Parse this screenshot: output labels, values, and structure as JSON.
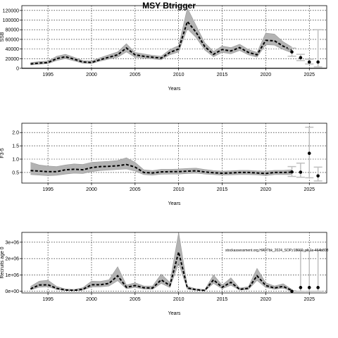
{
  "title": "MSY Btrigger",
  "colors": {
    "band": "#b3b3b3",
    "line": "#000000",
    "grid": "#000000",
    "error_bar": "#bfbfbf"
  },
  "chart_data": [
    {
      "type": "line",
      "ylabel": "SSB",
      "xlabel": "Years",
      "xlim": [
        1992,
        2027
      ],
      "ylim": [
        0,
        130000
      ],
      "xticks": [
        1995,
        2000,
        2005,
        2010,
        2015,
        2020,
        2025
      ],
      "yticks": [
        0,
        20000,
        40000,
        60000,
        80000,
        100000,
        120000
      ],
      "ytick_labels": [
        "0",
        "20000",
        "40000",
        "60000",
        "80000",
        "100000",
        "120000"
      ],
      "grid": true,
      "reference_line": 0,
      "x": [
        1993,
        1994,
        1995,
        1996,
        1997,
        1998,
        1999,
        2000,
        2001,
        2002,
        2003,
        2004,
        2005,
        2006,
        2007,
        2008,
        2009,
        2010,
        2011,
        2012,
        2013,
        2014,
        2015,
        2016,
        2017,
        2018,
        2019,
        2020,
        2021,
        2022,
        2023
      ],
      "values": [
        9000,
        11000,
        12000,
        20000,
        24000,
        19000,
        13000,
        12000,
        18000,
        23000,
        28000,
        42000,
        28000,
        25000,
        23000,
        21000,
        33000,
        40000,
        97000,
        75000,
        45000,
        29000,
        39000,
        36000,
        43000,
        33000,
        28000,
        58000,
        57000,
        46000,
        38000
      ],
      "lower": [
        7000,
        8500,
        9500,
        16000,
        20000,
        15500,
        10500,
        10000,
        15000,
        19000,
        23000,
        34000,
        23000,
        21000,
        19500,
        17500,
        28000,
        34000,
        82000,
        64000,
        38000,
        24000,
        33000,
        30000,
        37000,
        28000,
        23000,
        49000,
        48000,
        39000,
        32000
      ],
      "upper": [
        12000,
        14000,
        15000,
        25000,
        29000,
        23000,
        16000,
        15000,
        22000,
        28000,
        34000,
        51000,
        33000,
        30000,
        27000,
        25000,
        39000,
        47000,
        125000,
        89000,
        53000,
        35000,
        46000,
        43000,
        50000,
        39000,
        33000,
        73000,
        71000,
        55000,
        44000
      ],
      "projection": [
        {
          "x": 2023,
          "value": 34000,
          "lower": 25000,
          "upper": 42000
        },
        {
          "x": 2024,
          "value": 22000,
          "lower": 16000,
          "upper": 29000
        },
        {
          "x": 2025,
          "value": 13000,
          "lower": 9000,
          "upper": 19000
        },
        {
          "x": 2026,
          "value": 13000,
          "lower": 3000,
          "upper": 80000
        }
      ]
    },
    {
      "type": "line",
      "ylabel": "F3-5",
      "xlabel": "Years",
      "xlim": [
        1992,
        2027
      ],
      "ylim": [
        0.1,
        2.35
      ],
      "xticks": [
        1995,
        2000,
        2005,
        2010,
        2015,
        2020,
        2025
      ],
      "yticks": [
        0.5,
        1.0,
        1.5,
        2.0
      ],
      "ytick_labels": [
        "0.5",
        "1.0",
        "1.5",
        "2.0"
      ],
      "grid": true,
      "x": [
        1993,
        1994,
        1995,
        1996,
        1997,
        1998,
        1999,
        2000,
        2001,
        2002,
        2003,
        2004,
        2005,
        2006,
        2007,
        2008,
        2009,
        2010,
        2011,
        2012,
        2013,
        2014,
        2015,
        2016,
        2017,
        2018,
        2019,
        2020,
        2021,
        2022,
        2023
      ],
      "values": [
        0.57,
        0.55,
        0.53,
        0.53,
        0.6,
        0.62,
        0.6,
        0.68,
        0.72,
        0.73,
        0.75,
        0.8,
        0.7,
        0.5,
        0.48,
        0.52,
        0.53,
        0.53,
        0.55,
        0.56,
        0.52,
        0.49,
        0.47,
        0.48,
        0.5,
        0.5,
        0.48,
        0.46,
        0.5,
        0.5,
        0.51
      ],
      "lower": [
        0.42,
        0.4,
        0.38,
        0.39,
        0.44,
        0.47,
        0.46,
        0.53,
        0.57,
        0.59,
        0.61,
        0.63,
        0.55,
        0.42,
        0.4,
        0.43,
        0.44,
        0.44,
        0.46,
        0.47,
        0.44,
        0.42,
        0.4,
        0.41,
        0.42,
        0.42,
        0.41,
        0.38,
        0.42,
        0.42,
        0.42
      ],
      "upper": [
        0.88,
        0.78,
        0.74,
        0.72,
        0.78,
        0.82,
        0.8,
        0.88,
        0.9,
        0.92,
        0.95,
        1.05,
        0.88,
        0.6,
        0.57,
        0.62,
        0.62,
        0.63,
        0.65,
        0.66,
        0.61,
        0.57,
        0.55,
        0.56,
        0.58,
        0.58,
        0.56,
        0.55,
        0.58,
        0.58,
        0.6
      ],
      "projection": [
        {
          "x": 2023,
          "value": 0.52,
          "lower": 0.35,
          "upper": 0.72
        },
        {
          "x": 2024,
          "value": 0.51,
          "lower": 0.32,
          "upper": 0.85
        },
        {
          "x": 2025,
          "value": 1.22,
          "lower": 0.3,
          "upper": 2.2
        },
        {
          "x": 2026,
          "value": 0.37,
          "lower": 0.18,
          "upper": 0.7
        }
      ]
    },
    {
      "type": "line",
      "ylabel": "Recruits age 0",
      "xlabel": "Years",
      "xlim": [
        1992,
        2027
      ],
      "ylim": [
        -100000,
        3600000
      ],
      "xticks": [
        1995,
        2000,
        2005,
        2010,
        2015,
        2020,
        2025
      ],
      "yticks": [
        0,
        1000000,
        2000000,
        3000000
      ],
      "ytick_labels": [
        "0e+00",
        "1e+06",
        "2e+06",
        "3e+06"
      ],
      "grid": true,
      "annotation": "stockassessment.org,HAD7bk_2024_SOP,r18660_plt,1c-464b808",
      "x": [
        1993,
        1994,
        1995,
        1996,
        1997,
        1998,
        1999,
        2000,
        2001,
        2002,
        2003,
        2004,
        2005,
        2006,
        2007,
        2008,
        2009,
        2010,
        2011,
        2012,
        2013,
        2014,
        2015,
        2016,
        2017,
        2018,
        2019,
        2020,
        2021,
        2022,
        2023
      ],
      "values": [
        150000,
        380000,
        400000,
        180000,
        80000,
        60000,
        120000,
        400000,
        400000,
        480000,
        950000,
        250000,
        350000,
        220000,
        200000,
        700000,
        350000,
        2400000,
        200000,
        100000,
        50000,
        700000,
        250000,
        550000,
        120000,
        180000,
        950000,
        350000,
        200000,
        300000,
        50000
      ],
      "lower": [
        80000,
        250000,
        280000,
        110000,
        40000,
        30000,
        70000,
        260000,
        270000,
        320000,
        650000,
        160000,
        230000,
        140000,
        120000,
        480000,
        230000,
        1700000,
        130000,
        60000,
        20000,
        480000,
        160000,
        370000,
        70000,
        110000,
        660000,
        230000,
        130000,
        190000,
        20000
      ],
      "upper": [
        300000,
        620000,
        680000,
        300000,
        140000,
        110000,
        220000,
        620000,
        600000,
        700000,
        1500000,
        380000,
        520000,
        330000,
        320000,
        1050000,
        540000,
        3600000,
        300000,
        160000,
        100000,
        1000000,
        380000,
        820000,
        200000,
        280000,
        1400000,
        520000,
        320000,
        460000,
        120000
      ],
      "projection": [
        {
          "x": 2023,
          "value": 0,
          "lower": 0,
          "upper": 30000
        },
        {
          "x": 2024,
          "value": 230000,
          "lower": 0,
          "upper": 2500000
        },
        {
          "x": 2025,
          "value": 230000,
          "lower": 0,
          "upper": 2500000
        },
        {
          "x": 2026,
          "value": 230000,
          "lower": 0,
          "upper": 2500000
        }
      ]
    }
  ]
}
